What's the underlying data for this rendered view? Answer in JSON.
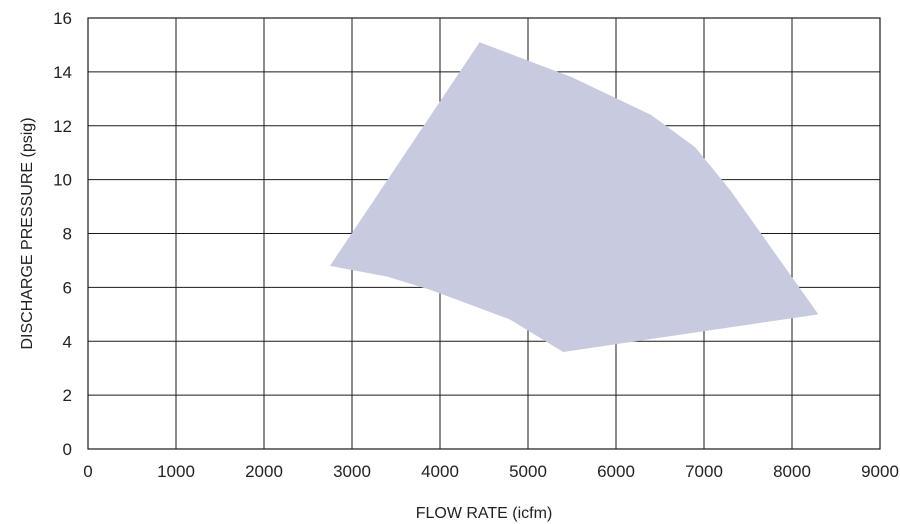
{
  "chart_data": {
    "type": "area",
    "title": "",
    "xlabel": "FLOW RATE (icfm)",
    "ylabel": "DISCHARGE PRESSURE (psig)",
    "xlim": [
      0,
      9000
    ],
    "ylim": [
      0,
      16
    ],
    "x_ticks": [
      0,
      1000,
      2000,
      3000,
      4000,
      5000,
      6000,
      7000,
      8000,
      9000
    ],
    "y_ticks": [
      0,
      2,
      4,
      6,
      8,
      10,
      12,
      14,
      16
    ],
    "grid": true,
    "fill_color": "#c8cbe0",
    "region_boundary": [
      {
        "x": 2750,
        "y": 6.8
      },
      {
        "x": 4450,
        "y": 15.1
      },
      {
        "x": 5500,
        "y": 13.8
      },
      {
        "x": 6400,
        "y": 12.4
      },
      {
        "x": 6900,
        "y": 11.2
      },
      {
        "x": 7300,
        "y": 9.6
      },
      {
        "x": 8300,
        "y": 5.0
      },
      {
        "x": 5400,
        "y": 3.6
      },
      {
        "x": 4800,
        "y": 4.8
      },
      {
        "x": 3900,
        "y": 5.9
      },
      {
        "x": 3400,
        "y": 6.4
      }
    ]
  }
}
